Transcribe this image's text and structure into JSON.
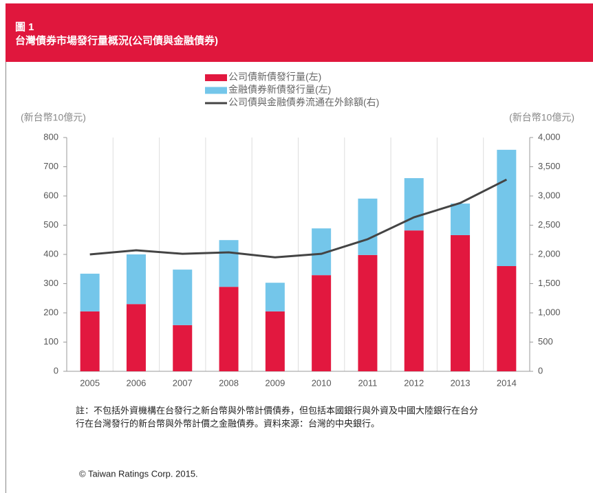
{
  "chart_data": {
    "type": "stacked_bar_line",
    "figure_label": "圖 1",
    "title": "台灣債券市場發行量概況(公司債與金融債券)",
    "y_label": "(新台幣10億元)",
    "y2_label": "(新台幣10億元)",
    "categories": [
      "2005",
      "2006",
      "2007",
      "2008",
      "2009",
      "2010",
      "2011",
      "2012",
      "2013",
      "2014"
    ],
    "series": [
      {
        "name": "公司債新債發行量(左)",
        "color": "#e2183f",
        "values": [
          205,
          230,
          158,
          289,
          205,
          329,
          398,
          482,
          466,
          360
        ]
      },
      {
        "name": "金融債券新債發行量(左)",
        "color": "#74c6ea",
        "values": [
          129,
          170,
          190,
          160,
          98,
          160,
          193,
          179,
          108,
          398
        ]
      },
      {
        "name": "公司債與金融債券流通在外餘額(右)",
        "color": "#444444",
        "axis": "y2",
        "values": [
          2000,
          2070,
          2010,
          2035,
          1950,
          2010,
          2260,
          2635,
          2880,
          3280
        ]
      }
    ],
    "ylim": [
      0,
      800
    ],
    "yticks": [
      0,
      100,
      200,
      300,
      400,
      500,
      600,
      700,
      800
    ],
    "y2lim": [
      0,
      4000
    ],
    "y2ticks": [
      0,
      500,
      {
        "value": 1000,
        "label": "1,000"
      },
      {
        "value": 1500,
        "label": "1,500"
      },
      {
        "value": 2000,
        "label": "2,000"
      },
      {
        "value": 2500,
        "label": "2,500"
      },
      {
        "value": 3000,
        "label": "3,000"
      },
      {
        "value": 3500,
        "label": "3,500"
      },
      {
        "value": 4000,
        "label": "4,000"
      }
    ],
    "note": [
      "註：不包括外資機構在台發行之新台幣與外幣計價債券，但包括本國銀行與外資及中國大陸銀行在台分",
      "行在台灣發行的新台幣與外幣計價之金融債券。資料來源：台灣的中央銀行。"
    ],
    "copyright": "© Taiwan Ratings Corp. 2015."
  }
}
